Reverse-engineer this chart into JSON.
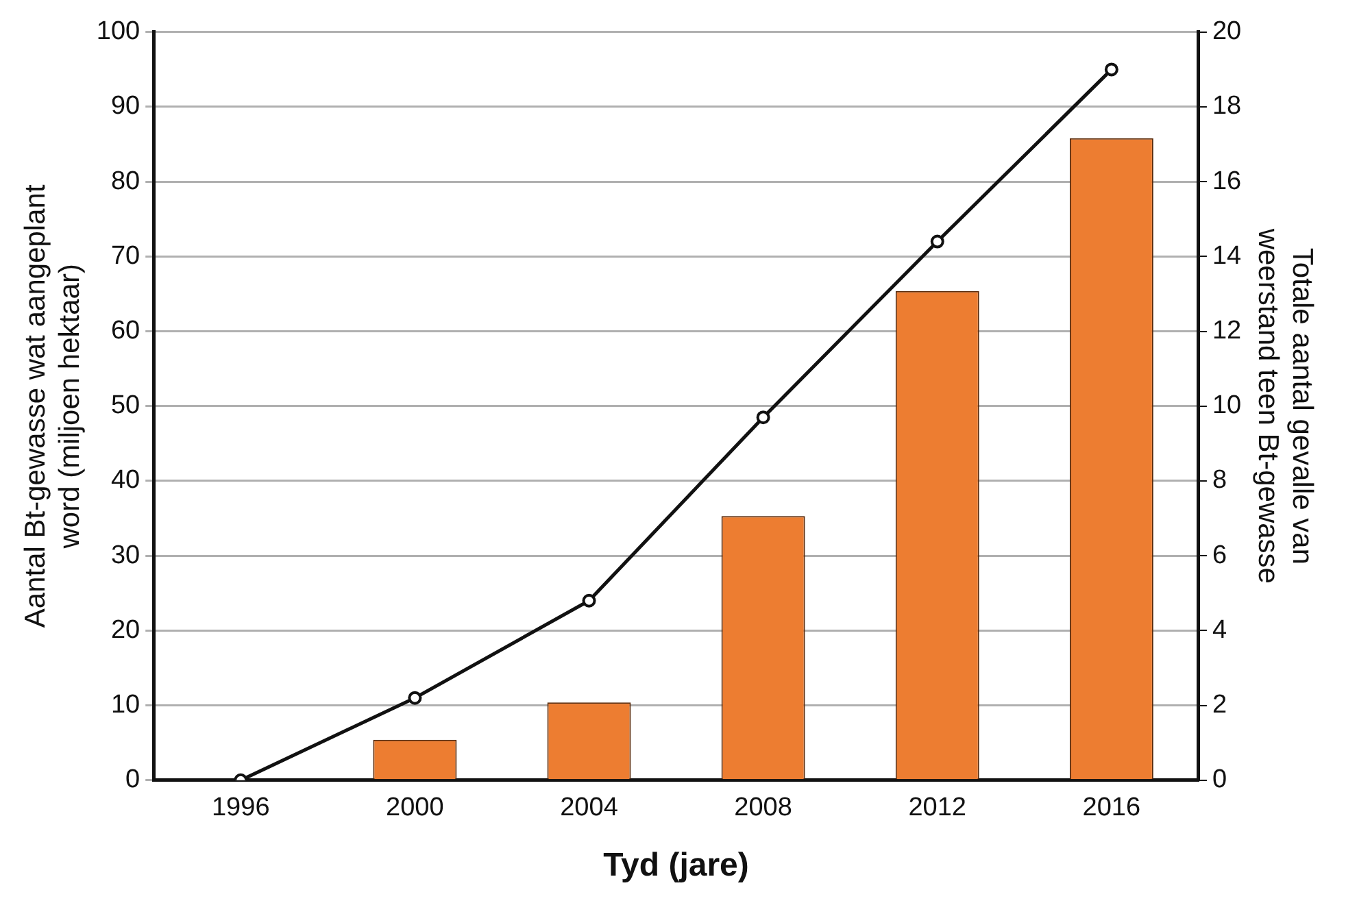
{
  "chart_data": {
    "type": "bar",
    "categories": [
      "1996",
      "2000",
      "2004",
      "2008",
      "2012",
      "2016"
    ],
    "xlabel": "Tyd (jare)",
    "ylabel": "Aantal Bt-gewasse wat aangeplant word (miljoen hektaar)",
    "y2label": "Totale aantal gevalle van weerstand teen Bt-gewasse",
    "series": [
      {
        "color": "#ed7d31",
        "values": [
          null,
          5.4,
          10.4,
          35.3,
          65.4,
          85.8
        ]
      },
      {
        "type": "line",
        "axis": "y2",
        "color": "#111111",
        "values": [
          0,
          2.2,
          4.8,
          9.7,
          14.4,
          19.0
        ]
      }
    ],
    "ylim": [
      0,
      100
    ],
    "yticks": [
      0,
      10,
      20,
      30,
      40,
      50,
      60,
      70,
      80,
      90,
      100
    ],
    "y2lim": [
      0,
      20
    ],
    "y2ticks": [
      0,
      2,
      4,
      6,
      8,
      10,
      12,
      14,
      16,
      18,
      20
    ],
    "grid": "y",
    "legend": false,
    "marker": "circle",
    "line_style": "solid"
  }
}
